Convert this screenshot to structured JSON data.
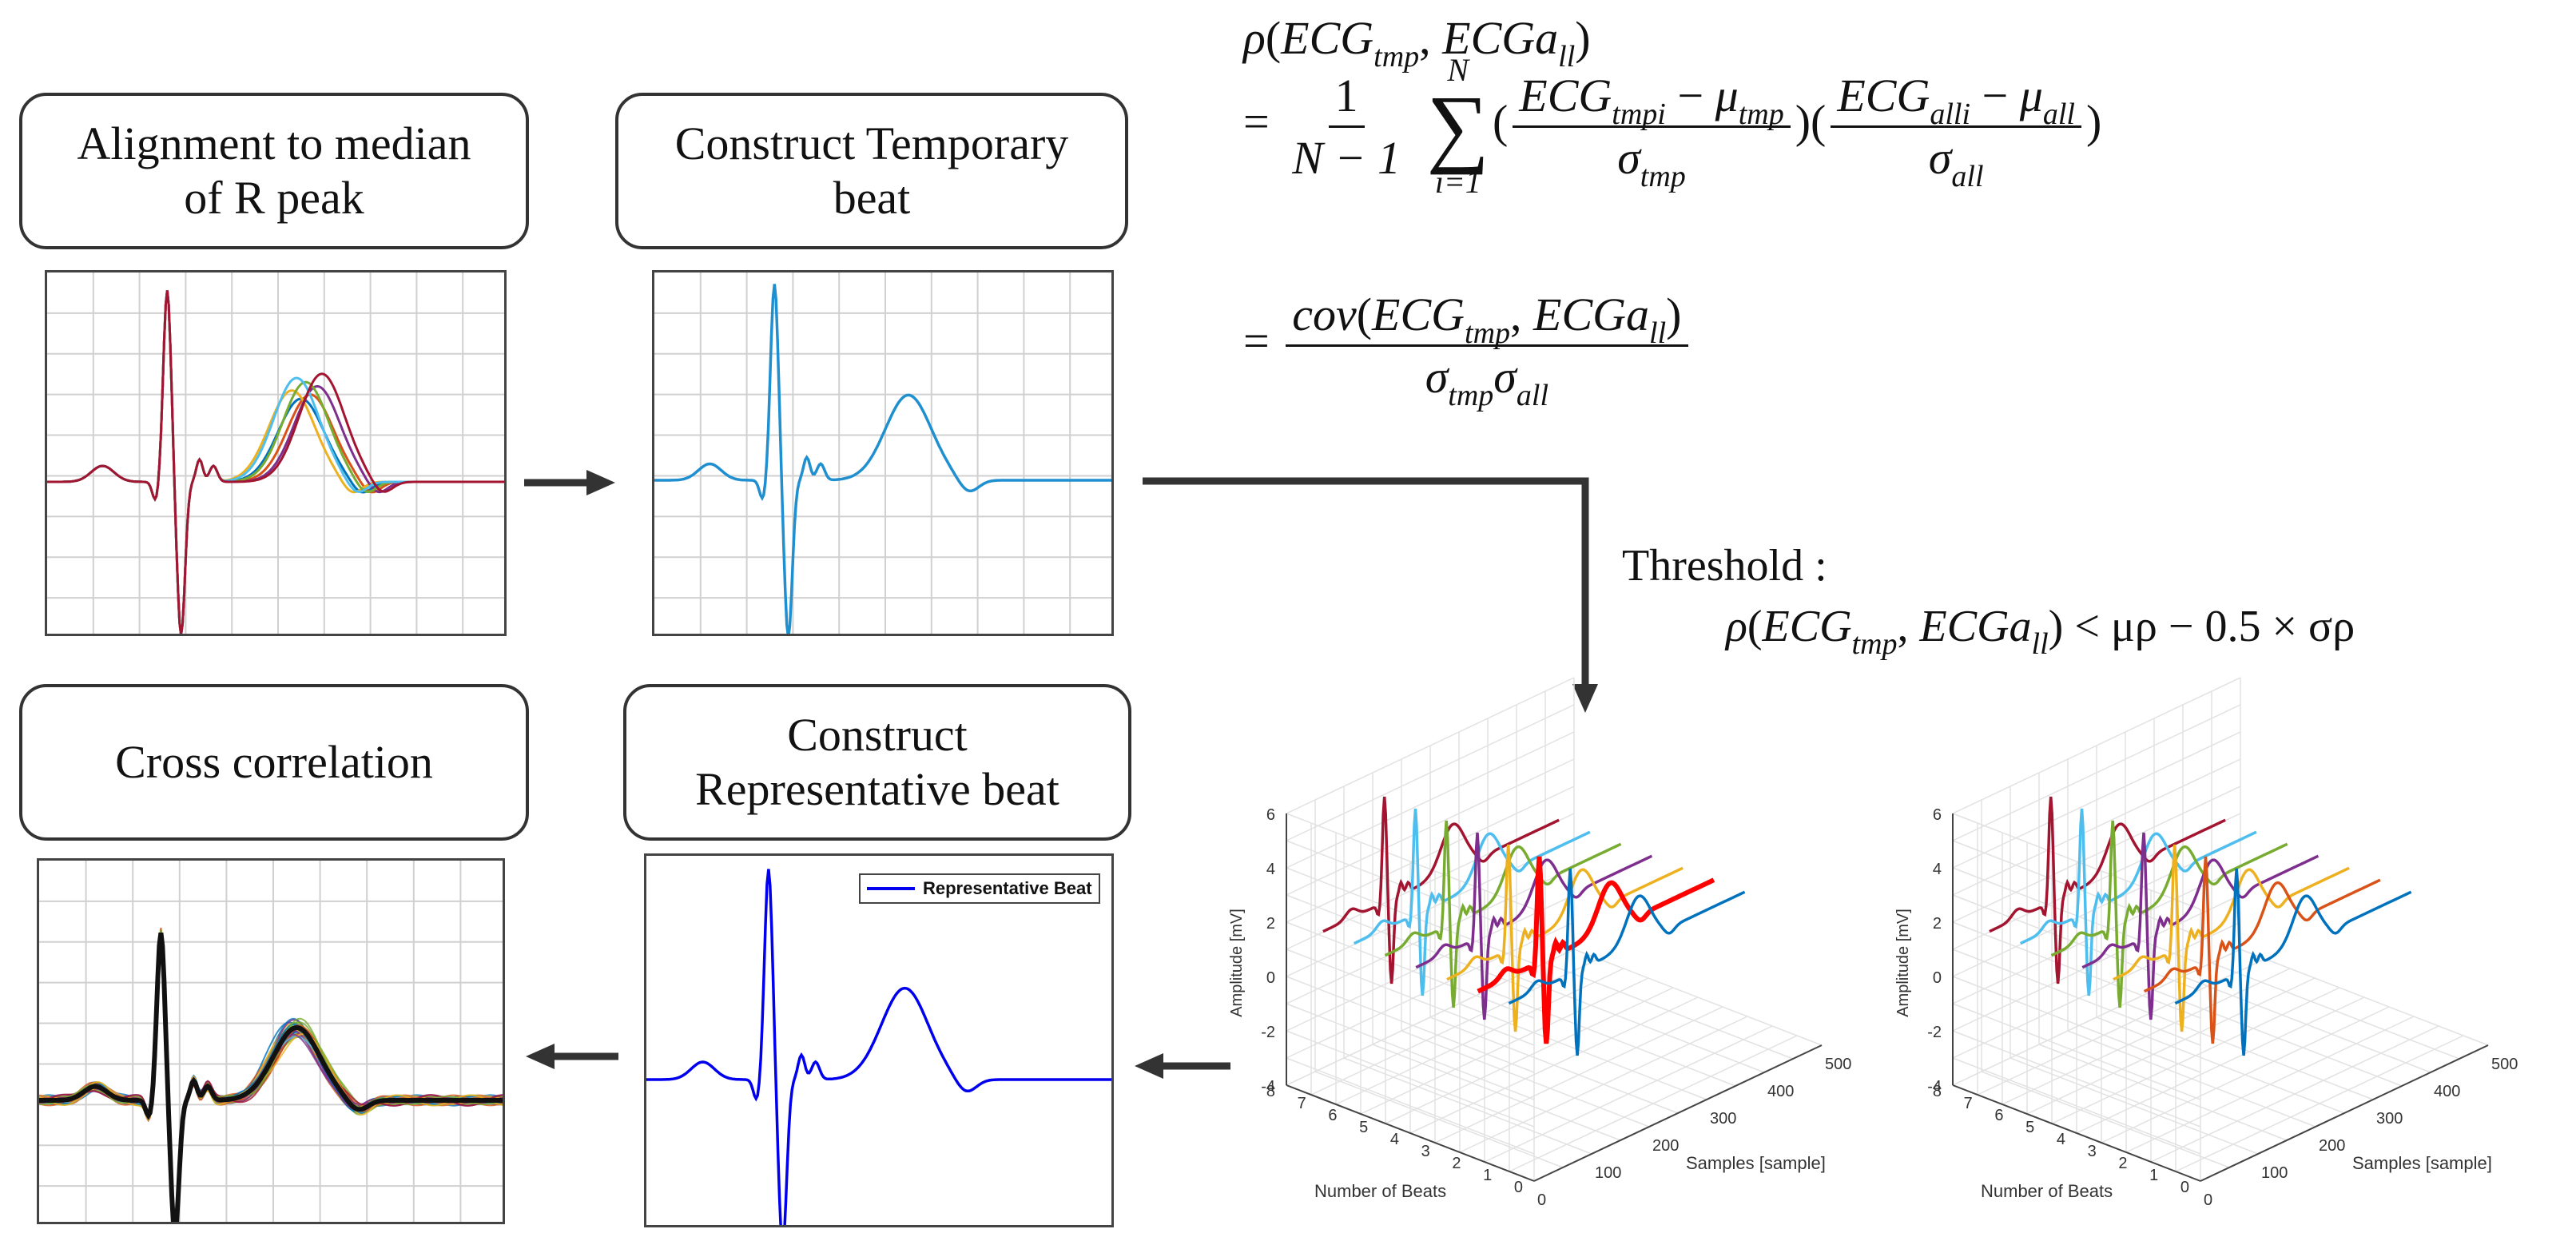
{
  "boxes": {
    "alignment": {
      "line1": "Alignment to median",
      "line2": "of R peak"
    },
    "temporary": {
      "line1": "Construct Temporary",
      "line2": "beat"
    },
    "cross": {
      "line1": "Cross correlation"
    },
    "representative": {
      "line1": "Construct",
      "line2": "Representative beat"
    }
  },
  "formula": {
    "rho": "ρ",
    "ecg": "ECG",
    "tmp": "tmp",
    "ecga": "ECGa",
    "ll": "ll",
    "all": "all",
    "i": "i",
    "mu": "μ",
    "sigma": "σ",
    "one": "1",
    "n_minus_1": "N − 1",
    "n_upper": "N",
    "i_eq_1": "i=1",
    "equals": "=",
    "cov": "cov",
    "minus": "−",
    "sum": "∑"
  },
  "threshold": {
    "label": "Threshold :",
    "rhs": "< μρ  − 0.5 × σρ"
  },
  "legend": {
    "label": "Representative Beat"
  },
  "plot3d": {
    "zlabel": "Amplitude [mV]",
    "xlabel": "Samples [sample]",
    "ylabel": "Number of Beats",
    "z_ticks": [
      "6",
      "4",
      "2",
      "0",
      "-2",
      "-4"
    ],
    "x_ticks": [
      "0",
      "100",
      "200",
      "300",
      "400",
      "500"
    ],
    "y_ticks": [
      "8",
      "7",
      "6",
      "5",
      "4",
      "3",
      "2",
      "1",
      "0"
    ]
  },
  "colors": {
    "blue_trace": "#1f8fd0",
    "rep_trace": "#0000ee",
    "arrow": "#333333",
    "series": [
      "#0072bd",
      "#d95319",
      "#edb120",
      "#7e2f8e",
      "#77ac30",
      "#4dbeee",
      "#a2142f"
    ],
    "highlight": "#ff0000"
  }
}
